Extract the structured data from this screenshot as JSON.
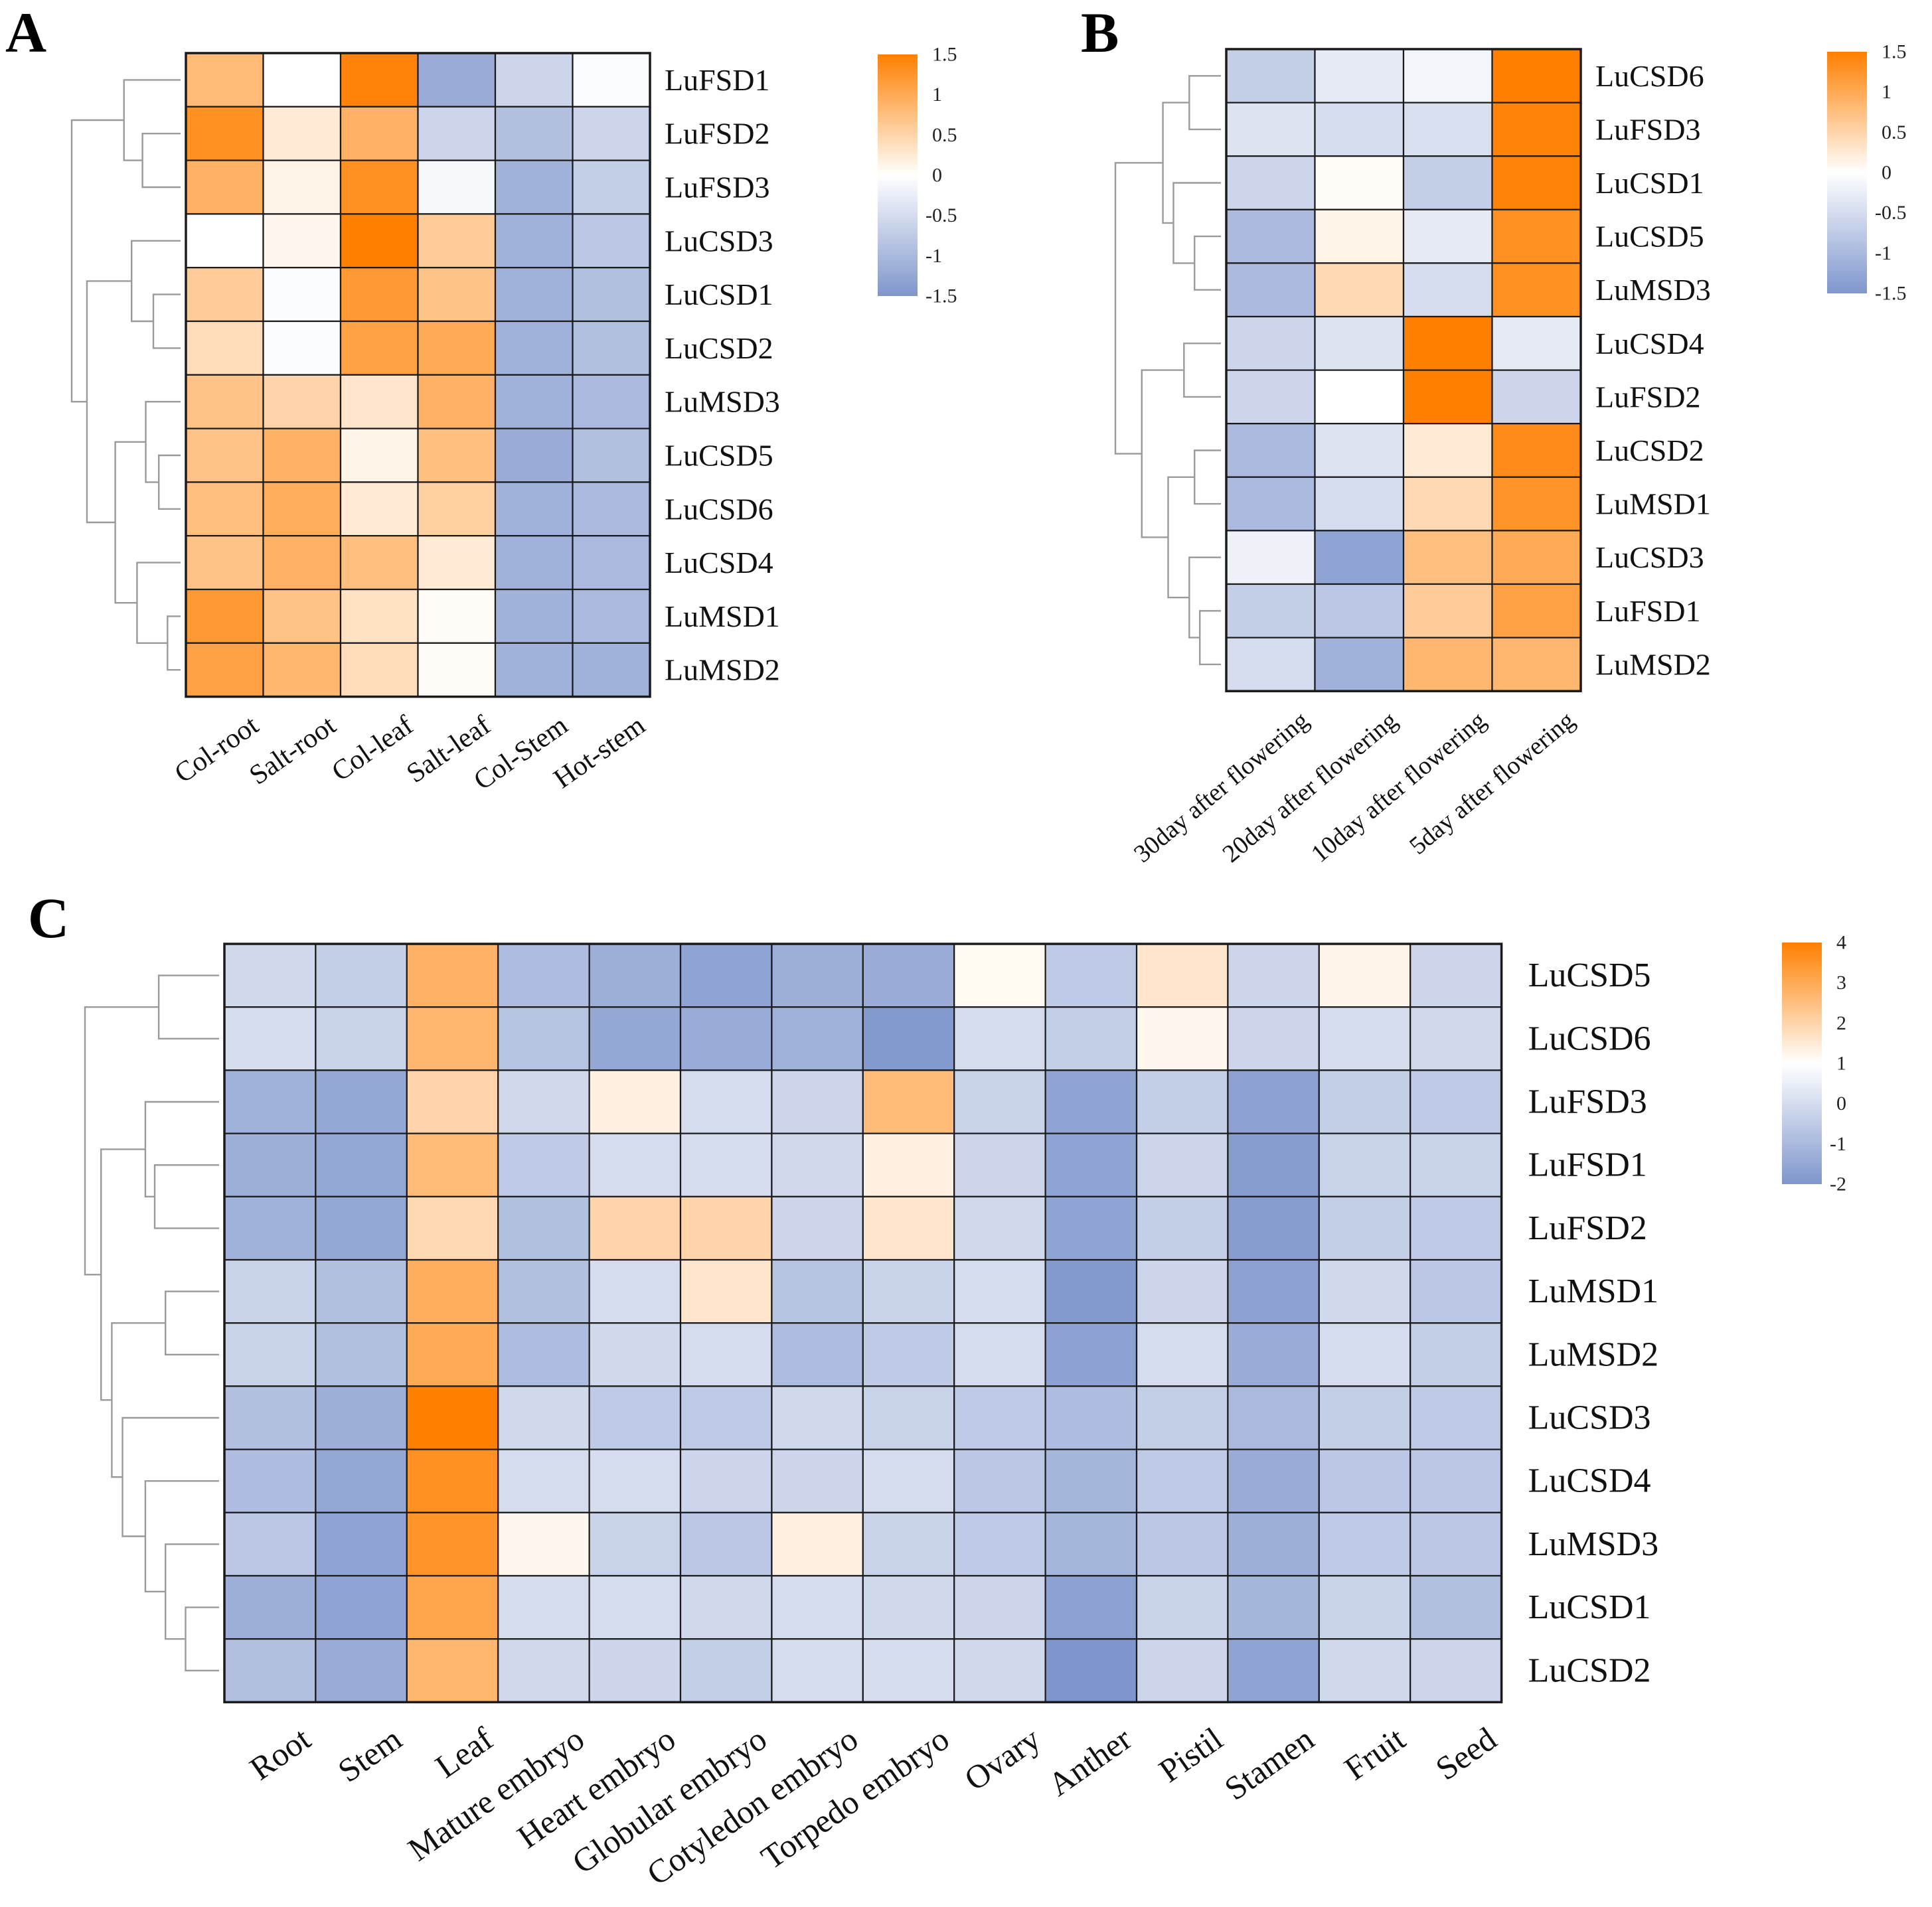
{
  "colors": {
    "high": "#ff7f00",
    "mid": "#ffffff",
    "low": "#7f96cc",
    "cell_border": "#1a1a1a"
  },
  "chart_data": [
    {
      "panel": "A",
      "type": "heatmap",
      "rows": [
        "LuFSD1",
        "LuFSD2",
        "LuFSD3",
        "LuCSD3",
        "LuCSD1",
        "LuCSD2",
        "LuMSD3",
        "LuCSD5",
        "LuCSD6",
        "LuCSD4",
        "LuMSD1",
        "LuMSD2"
      ],
      "columns": [
        "Col-root",
        "Salt-root",
        "Col-leaf",
        "Salt-leaf",
        "Col-Stem",
        "Hot-stem"
      ],
      "values": [
        [
          0.8,
          0.0,
          1.45,
          -1.2,
          -0.6,
          -0.05
        ],
        [
          1.3,
          0.25,
          0.9,
          -0.6,
          -0.9,
          -0.6
        ],
        [
          0.9,
          0.15,
          1.3,
          -0.1,
          -1.1,
          -0.7
        ],
        [
          0.0,
          0.1,
          1.5,
          0.6,
          -1.1,
          -0.8
        ],
        [
          0.6,
          -0.05,
          1.2,
          0.7,
          -1.1,
          -0.9
        ],
        [
          0.4,
          -0.05,
          1.1,
          1.0,
          -1.1,
          -0.9
        ],
        [
          0.7,
          0.5,
          0.3,
          0.9,
          -1.1,
          -1.0
        ],
        [
          0.7,
          0.9,
          0.15,
          0.75,
          -1.2,
          -0.9
        ],
        [
          0.75,
          0.95,
          0.25,
          0.55,
          -1.1,
          -1.0
        ],
        [
          0.7,
          0.9,
          0.75,
          0.25,
          -1.1,
          -1.0
        ],
        [
          1.2,
          0.7,
          0.35,
          0.05,
          -1.1,
          -1.0
        ],
        [
          1.1,
          0.85,
          0.4,
          0.05,
          -1.1,
          -1.1
        ]
      ],
      "legend": {
        "min": -1.5,
        "max": 1.5,
        "ticks": [
          "1.5",
          "1",
          "0.5",
          "0",
          "-0.5",
          "-1",
          "-1.5"
        ]
      },
      "legend_position": "right"
    },
    {
      "panel": "B",
      "type": "heatmap",
      "rows": [
        "LuCSD6",
        "LuFSD3",
        "LuCSD1",
        "LuCSD5",
        "LuMSD3",
        "LuCSD4",
        "LuFSD2",
        "LuCSD2",
        "LuMSD1",
        "LuCSD3",
        "LuFSD1",
        "LuMSD2"
      ],
      "columns": [
        "30day after flowering",
        "20day after flowering",
        "10day after flowering",
        "5day after flowering"
      ],
      "values": [
        [
          -0.7,
          -0.3,
          -0.15,
          1.5
        ],
        [
          -0.4,
          -0.5,
          -0.45,
          1.45
        ],
        [
          -0.6,
          0.05,
          -0.7,
          1.45
        ],
        [
          -1.0,
          0.15,
          -0.3,
          1.3
        ],
        [
          -1.0,
          0.45,
          -0.5,
          1.3
        ],
        [
          -0.6,
          -0.4,
          1.5,
          -0.3
        ],
        [
          -0.6,
          0.0,
          1.5,
          -0.6
        ],
        [
          -1.0,
          -0.4,
          0.25,
          1.35
        ],
        [
          -1.0,
          -0.5,
          0.45,
          1.25
        ],
        [
          -0.2,
          -1.3,
          0.75,
          1.0
        ],
        [
          -0.7,
          -0.8,
          0.6,
          1.1
        ],
        [
          -0.5,
          -1.1,
          0.85,
          0.85
        ]
      ],
      "legend": {
        "min": -1.5,
        "max": 1.5,
        "ticks": [
          "1.5",
          "1",
          "0.5",
          "0",
          "-0.5",
          "-1",
          "-1.5"
        ]
      },
      "legend_position": "right"
    },
    {
      "panel": "C",
      "type": "heatmap",
      "rows": [
        "LuCSD5",
        "LuCSD6",
        "LuFSD3",
        "LuFSD1",
        "LuFSD2",
        "LuMSD1",
        "LuMSD2",
        "LuCSD3",
        "LuCSD4",
        "LuMSD3",
        "LuCSD1",
        "LuCSD2"
      ],
      "columns": [
        "Root",
        "Stem",
        "Leaf",
        "Mature embryo",
        "Heart embryo",
        "Globular embryo",
        "Cotyledon embryo",
        "Torpedo embryo",
        "Ovary",
        "Anther",
        "Pistil",
        "Stamen",
        "Fruit",
        "Seed"
      ],
      "values": [
        [
          -0.1,
          -0.4,
          2.8,
          -0.9,
          -1.3,
          -1.6,
          -1.3,
          -1.4,
          1.15,
          -0.5,
          1.6,
          -0.2,
          1.25,
          -0.2
        ],
        [
          0.0,
          -0.3,
          2.7,
          -0.7,
          -1.5,
          -1.4,
          -1.2,
          -1.9,
          0.0,
          -0.4,
          1.2,
          -0.2,
          0.0,
          -0.1
        ],
        [
          -1.2,
          -1.5,
          2.0,
          -0.1,
          1.35,
          0.0,
          -0.2,
          2.6,
          -0.3,
          -1.6,
          -0.4,
          -1.7,
          -0.4,
          -0.5
        ],
        [
          -1.3,
          -1.5,
          2.6,
          -0.5,
          0.0,
          0.0,
          -0.1,
          1.35,
          -0.2,
          -1.6,
          -0.2,
          -1.8,
          -0.3,
          -0.3
        ],
        [
          -1.2,
          -1.5,
          1.9,
          -0.8,
          2.0,
          2.0,
          -0.2,
          1.6,
          -0.1,
          -1.6,
          -0.4,
          -1.8,
          -0.4,
          -0.5
        ],
        [
          -0.3,
          -0.8,
          2.9,
          -0.8,
          0.0,
          1.6,
          -0.7,
          -0.3,
          0.0,
          -1.9,
          -0.2,
          -1.7,
          -0.1,
          -0.6
        ],
        [
          -0.3,
          -0.8,
          3.0,
          -0.9,
          -0.1,
          0.0,
          -0.9,
          -0.5,
          0.0,
          -1.7,
          0.0,
          -1.4,
          0.0,
          -0.4
        ],
        [
          -0.8,
          -1.3,
          4.0,
          -0.1,
          -0.5,
          -0.5,
          -0.1,
          -0.3,
          -0.5,
          -0.9,
          -0.4,
          -1.0,
          -0.4,
          -0.5
        ],
        [
          -0.9,
          -1.5,
          3.6,
          0.0,
          0.0,
          -0.2,
          -0.2,
          0.0,
          -0.6,
          -1.1,
          -0.5,
          -1.4,
          -0.6,
          -0.6
        ],
        [
          -0.6,
          -1.6,
          3.5,
          1.2,
          -0.3,
          -0.6,
          1.35,
          -0.3,
          -0.5,
          -1.1,
          -0.6,
          -1.3,
          -0.5,
          -0.6
        ],
        [
          -1.3,
          -1.6,
          3.1,
          0.0,
          0.0,
          -0.1,
          0.0,
          -0.1,
          -0.2,
          -1.7,
          -0.3,
          -1.1,
          -0.3,
          -0.8
        ],
        [
          -0.8,
          -1.4,
          2.7,
          -0.1,
          -0.2,
          -0.4,
          0.0,
          0.0,
          -0.1,
          -2.0,
          -0.2,
          -1.6,
          -0.1,
          -0.2
        ]
      ],
      "legend": {
        "min": -2,
        "max": 4,
        "ticks": [
          "4",
          "3",
          "2",
          "1",
          "0",
          "-1",
          "-2"
        ]
      },
      "legend_position": "right"
    }
  ]
}
